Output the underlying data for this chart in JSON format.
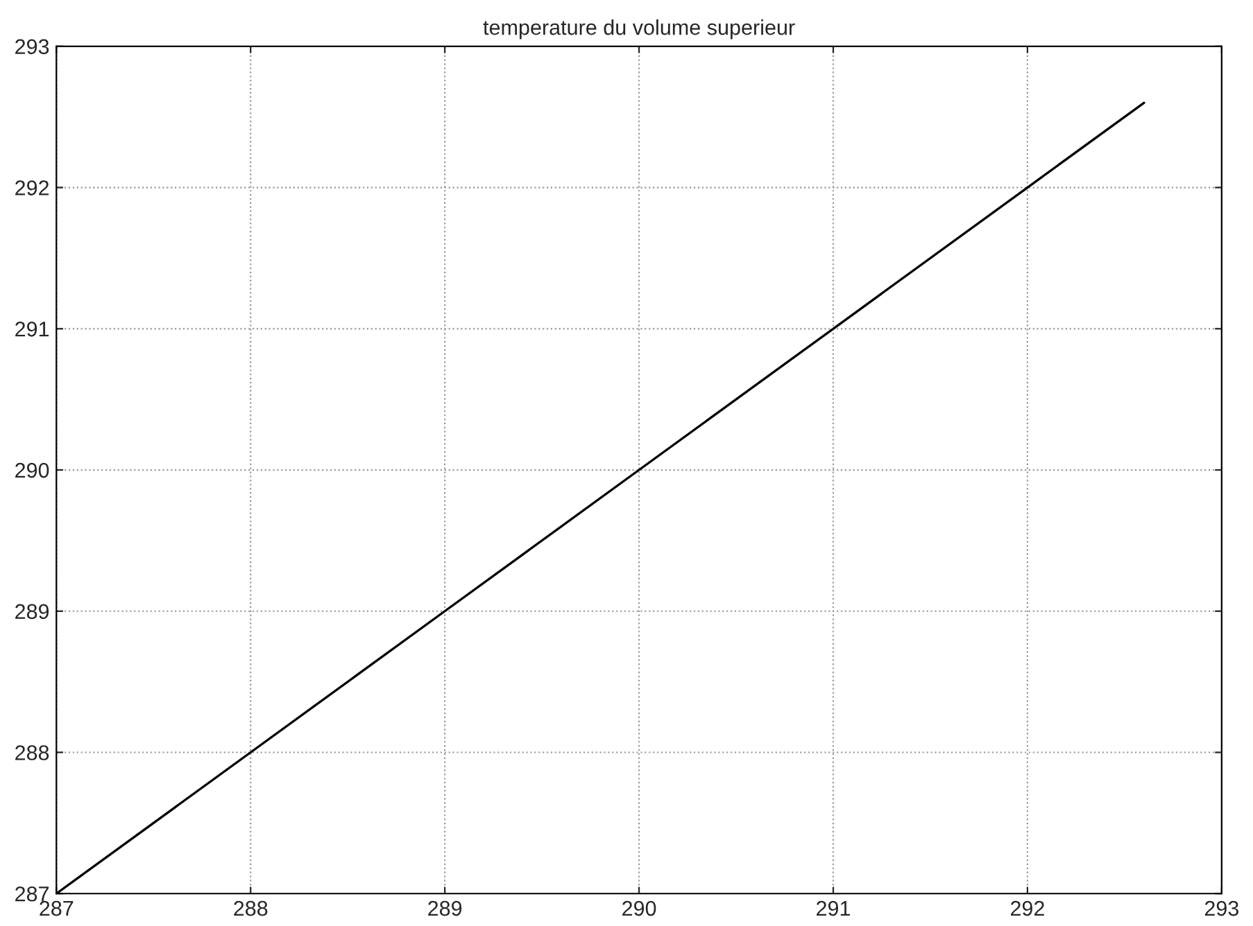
{
  "chart_data": {
    "type": "line",
    "title": "temperature du volume superieur",
    "x": [
      287,
      288,
      289,
      290,
      291,
      292,
      292.6
    ],
    "values": [
      287,
      288,
      289,
      290,
      291,
      292,
      292.6
    ],
    "color": "#000000",
    "xlim": [
      287,
      293
    ],
    "ylim": [
      287,
      293
    ],
    "xticks": [
      287,
      288,
      289,
      290,
      291,
      292,
      293
    ],
    "yticks": [
      287,
      288,
      289,
      290,
      291,
      292,
      293
    ],
    "grid": true,
    "line_style": "solid"
  }
}
